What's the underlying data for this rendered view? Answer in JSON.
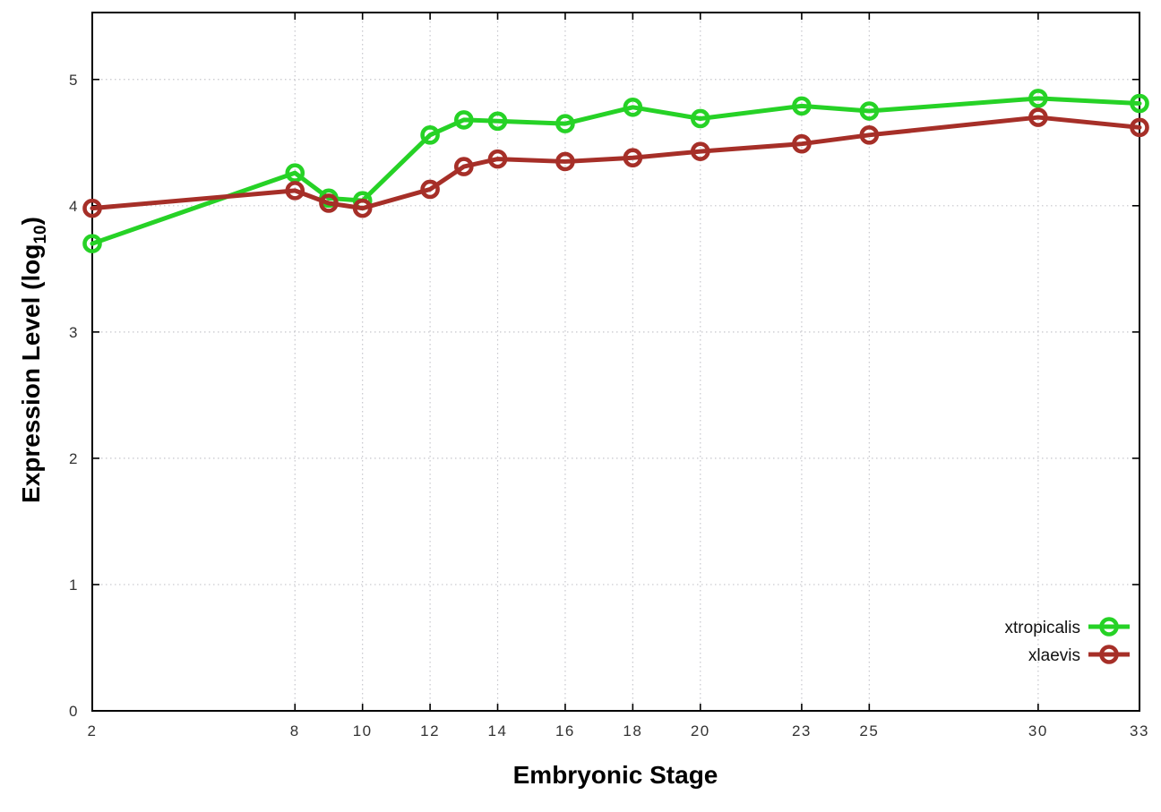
{
  "chart_data": {
    "type": "line",
    "title": "",
    "xlabel": "Embryonic Stage",
    "ylabel_prefix": "Expression Level (log",
    "ylabel_sub": "10",
    "ylabel_suffix": ")",
    "x": [
      2,
      8,
      9,
      10,
      12,
      13,
      14,
      16,
      18,
      20,
      23,
      25,
      30,
      33
    ],
    "x_tick_labels": [
      2,
      8,
      10,
      12,
      14,
      16,
      18,
      20,
      23,
      25,
      30,
      33
    ],
    "y_tick_labels": [
      0,
      1,
      2,
      3,
      4,
      5
    ],
    "xlim": [
      2,
      33
    ],
    "ylim": [
      0,
      5.53
    ],
    "grid": true,
    "legend_position": "inside bottom-right",
    "series": [
      {
        "name": "xtropicalis",
        "color": "#26d226",
        "marker": "open-circle",
        "values": [
          3.7,
          4.26,
          4.06,
          4.04,
          4.56,
          4.68,
          4.67,
          4.65,
          4.78,
          4.69,
          4.79,
          4.75,
          4.85,
          4.81
        ]
      },
      {
        "name": "xlaevis",
        "color": "#a62f28",
        "marker": "open-circle",
        "values": [
          3.98,
          4.12,
          4.02,
          3.98,
          4.13,
          4.31,
          4.37,
          4.35,
          4.38,
          4.43,
          4.49,
          4.56,
          4.7,
          4.62
        ]
      }
    ]
  },
  "colors": {
    "background": "#ffffff",
    "axis": "#000000",
    "grid": "#c6c6cc",
    "tick_text": "#333333"
  }
}
